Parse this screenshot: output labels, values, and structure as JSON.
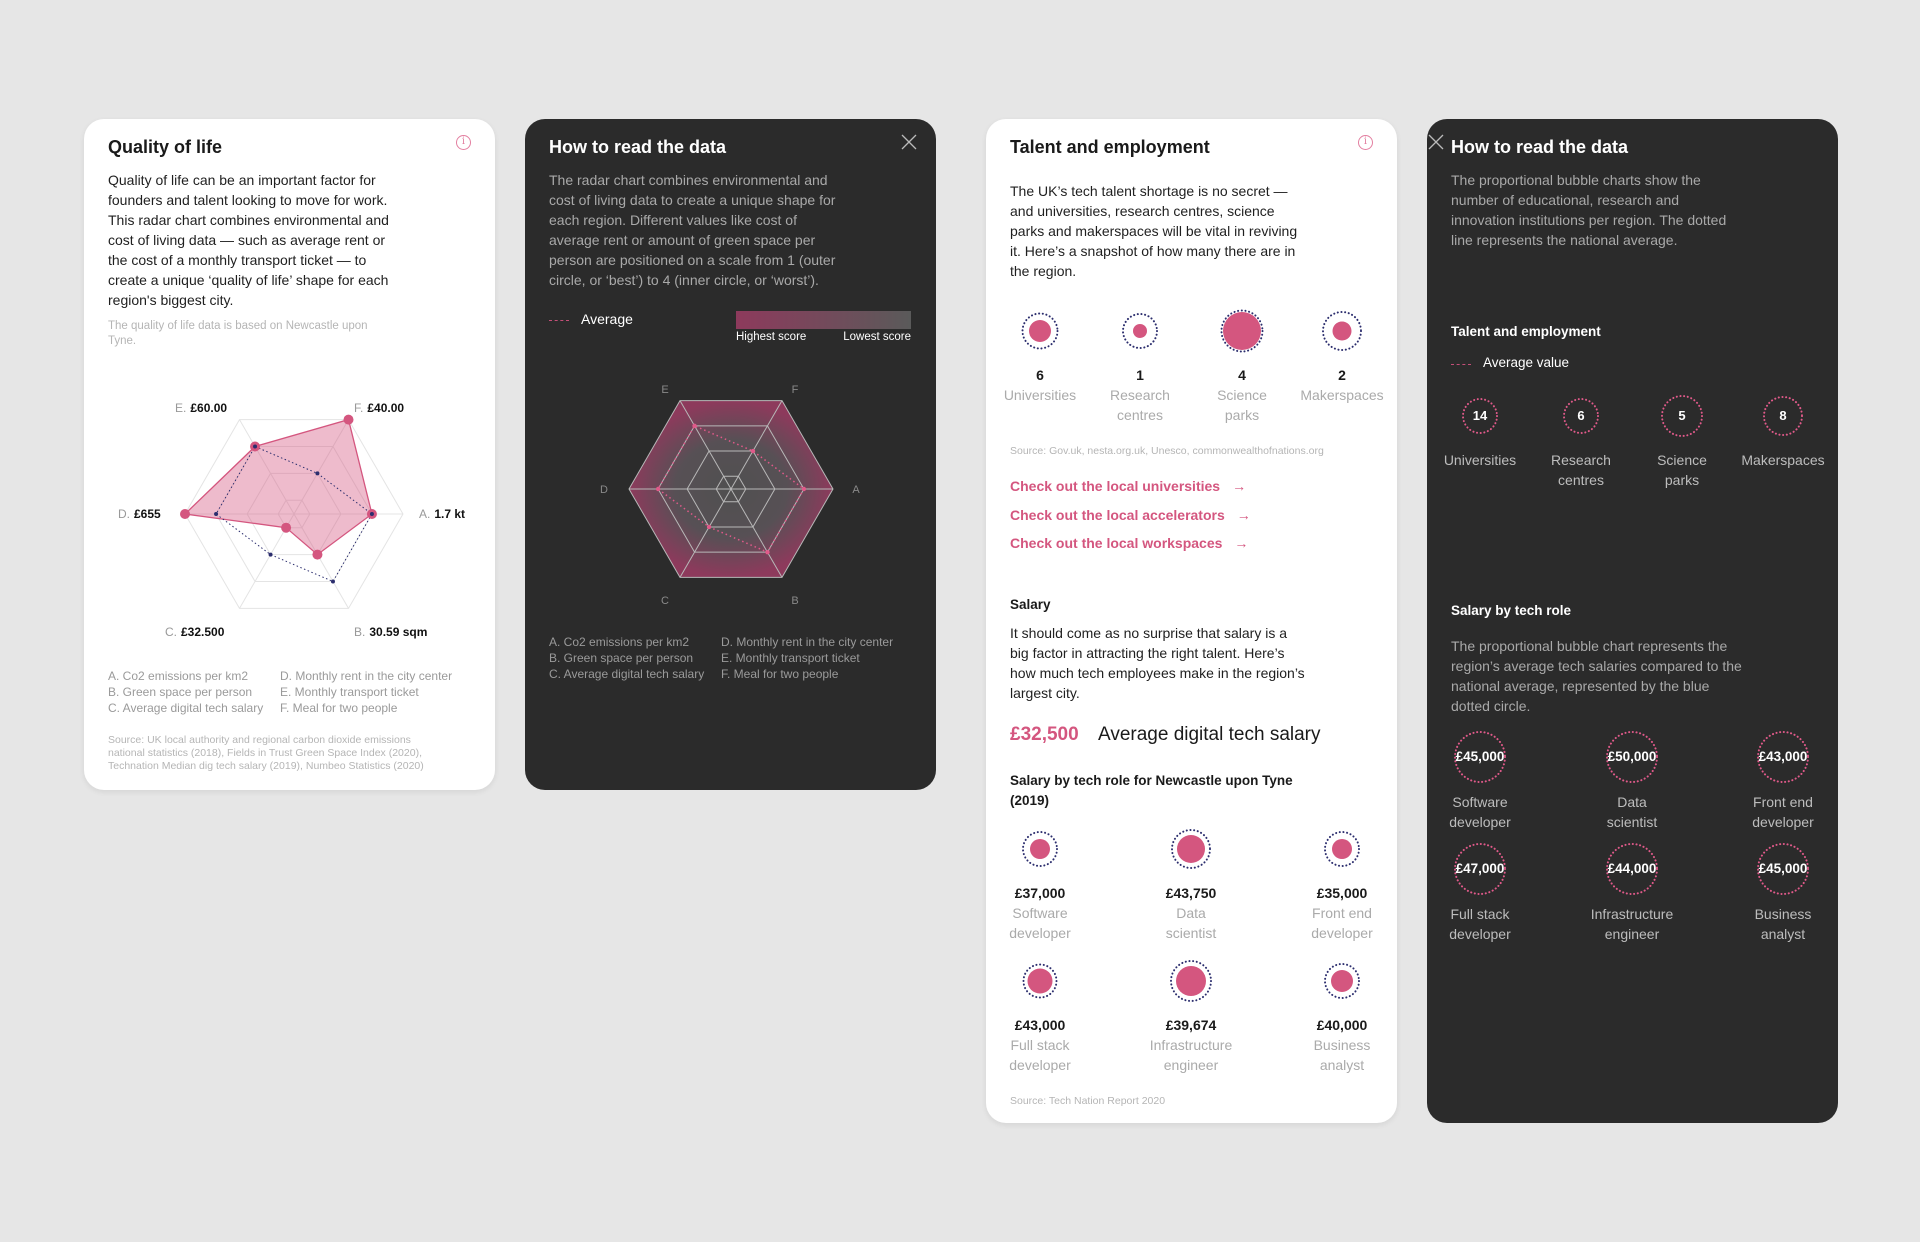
{
  "colors": {
    "accent": "#d4567f",
    "average": "#2c2e6e",
    "dark_card": "#2b2b2b",
    "background": "#e6e6e6"
  },
  "quality": {
    "title": "Quality of life",
    "info_icon": "info-icon",
    "body": "Quality of life can be an important factor for\nfounders and talent looking to move for work.\nThis radar chart combines environmental and\ncost of living data — such as average rent or\nthe cost of a monthly transport ticket — to\ncreate a unique ‘quality of life’ shape for each\nregion's biggest city.",
    "note": "The quality of life data is based on Newcastle upon\nTyne.",
    "axis_labels": [
      {
        "letter": "A.",
        "value": "1.7 kt"
      },
      {
        "letter": "B.",
        "value": "30.59 sqm"
      },
      {
        "letter": "C.",
        "value": "£32.500"
      },
      {
        "letter": "D.",
        "value": "£655"
      },
      {
        "letter": "E.",
        "value": "£60.00"
      },
      {
        "letter": "F.",
        "value": "£40.00"
      }
    ],
    "legend_left": "A. Co2 emissions per km2\nB. Green space per person\nC. Average digital tech salary",
    "legend_right": "D. Monthly rent in the city center\nE. Monthly transport ticket\nF. Meal for two people",
    "source": "Source: UK local authority and regional carbon dioxide emissions\nnational statistics (2018), Fields in Trust Green Space Index (2020),\nTechnation Median dig tech salary (2019), Numbeo Statistics (2020)"
  },
  "howto1": {
    "title": "How to read the data",
    "close_icon": "close-icon",
    "body": "The radar chart combines environmental and\ncost of living data to create a unique shape for\neach region. Different values like cost of\naverage rent or amount of green space per\nperson are positioned on a scale from 1 (outer\ncircle, or ‘best’) to 4 (inner circle, or ‘worst’).",
    "average_label": "Average",
    "highest_label": "Highest score",
    "lowest_label": "Lowest score",
    "axis_letters": [
      "A",
      "B",
      "C",
      "D",
      "E",
      "F"
    ],
    "legend_left": "A. Co2 emissions per km2\nB. Green space per person\nC. Average digital tech salary",
    "legend_right": "D. Monthly rent in the city center\nE. Monthly transport ticket\nF. Meal for two people"
  },
  "talent": {
    "title": "Talent and employment",
    "info_icon": "info-icon",
    "body": "The UK’s tech talent shortage is no secret —\nand universities, research centres, science\nparks and makerspaces will be vital in reviving\nit. Here’s a snapshot of how many there are in\nthe region.",
    "institutions": [
      {
        "count": "6",
        "label": "Universities"
      },
      {
        "count": "1",
        "label": "Research\ncentres"
      },
      {
        "count": "4",
        "label": "Science\nparks"
      },
      {
        "count": "2",
        "label": "Makerspaces"
      }
    ],
    "source": "Source: Gov.uk, nesta.org.uk, Unesco, commonwealthofnations.org",
    "links": [
      {
        "label": "Check out the local universities",
        "arrow": "→"
      },
      {
        "label": "Check out the local accelerators",
        "arrow": "→"
      },
      {
        "label": "Check out the local workspaces",
        "arrow": "→"
      }
    ],
    "salary_heading": "Salary",
    "salary_body": "It should come as no surprise that salary is a\nbig factor in attracting the right talent. Here’s\nhow much tech employees make in the region’s\nlargest city.",
    "avg_salary": "£32,500",
    "avg_salary_label": "Average digital tech salary",
    "roles_heading": "Salary by tech role for Newcastle upon Tyne\n(2019)",
    "roles": [
      {
        "salary": "£37,000",
        "label": "Software\ndeveloper"
      },
      {
        "salary": "£43,750",
        "label": "Data\nscientist"
      },
      {
        "salary": "£35,000",
        "label": "Front end\ndeveloper"
      },
      {
        "salary": "£43,000",
        "label": "Full stack\ndeveloper"
      },
      {
        "salary": "£39,674",
        "label": "Infrastructure\nengineer"
      },
      {
        "salary": "£40,000",
        "label": "Business\nanalyst"
      }
    ],
    "roles_source": "Source: Tech Nation Report 2020"
  },
  "howto2": {
    "title": "How to read the data",
    "close_icon": "close-icon",
    "body": "The proportional bubble charts show the\nnumber of educational, research and\ninnovation institutions per region. The dotted\nline represents the national average.",
    "talent_heading": "Talent and employment",
    "average_value_label": "Average value",
    "averages": [
      {
        "count": "14",
        "label": "Universities"
      },
      {
        "count": "6",
        "label": "Research\ncentres"
      },
      {
        "count": "5",
        "label": "Science\nparks"
      },
      {
        "count": "8",
        "label": "Makerspaces"
      }
    ],
    "salary_heading": "Salary by tech role",
    "salary_body": "The proportional bubble chart represents the\nregion’s average tech salaries compared to the\nnational average, represented by the blue\ndotted circle.",
    "roles": [
      {
        "salary": "£45,000",
        "label": "Software\ndeveloper"
      },
      {
        "salary": "£50,000",
        "label": "Data\nscientist"
      },
      {
        "salary": "£43,000",
        "label": "Front end\ndeveloper"
      },
      {
        "salary": "£47,000",
        "label": "Full stack\ndeveloper"
      },
      {
        "salary": "£44,000",
        "label": "Infrastructure\nengineer"
      },
      {
        "salary": "£45,000",
        "label": "Business\nanalyst"
      }
    ]
  },
  "chart_data": [
    {
      "type": "radar",
      "axes": [
        "A",
        "B",
        "C",
        "D",
        "E",
        "F"
      ],
      "scale": [
        1,
        4
      ],
      "scale_note": "1 = outer (best), 4 = inner (worst)",
      "series": [
        {
          "values": [
            2,
            3,
            4,
            1,
            2,
            1
          ]
        },
        {
          "name": "Average",
          "values": [
            2,
            2,
            3,
            2,
            2,
            3
          ],
          "style": "dotted"
        }
      ]
    },
    {
      "type": "radar",
      "axes": [
        "A",
        "B",
        "C",
        "D",
        "E",
        "F"
      ],
      "scale": [
        1,
        4
      ],
      "series": [
        {
          "name": "Average",
          "values": [
            2,
            2,
            3,
            2,
            2,
            3
          ],
          "style": "dotted"
        }
      ]
    }
  ]
}
